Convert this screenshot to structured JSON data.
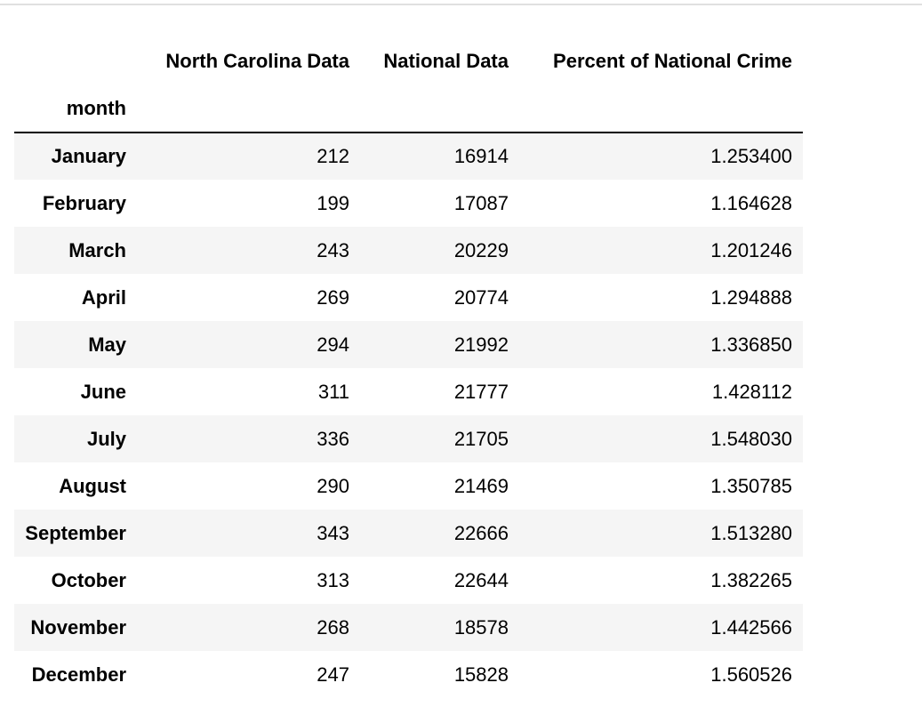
{
  "table": {
    "columns": [
      "North Carolina Data",
      "National Data",
      "Percent of National Crime"
    ],
    "index_name": "month",
    "rows": [
      {
        "month": "January",
        "nc": "212",
        "national": "16914",
        "percent": "1.253400"
      },
      {
        "month": "February",
        "nc": "199",
        "national": "17087",
        "percent": "1.164628"
      },
      {
        "month": "March",
        "nc": "243",
        "national": "20229",
        "percent": "1.201246"
      },
      {
        "month": "April",
        "nc": "269",
        "national": "20774",
        "percent": "1.294888"
      },
      {
        "month": "May",
        "nc": "294",
        "national": "21992",
        "percent": "1.336850"
      },
      {
        "month": "June",
        "nc": "311",
        "national": "21777",
        "percent": "1.428112"
      },
      {
        "month": "July",
        "nc": "336",
        "national": "21705",
        "percent": "1.548030"
      },
      {
        "month": "August",
        "nc": "290",
        "national": "21469",
        "percent": "1.350785"
      },
      {
        "month": "September",
        "nc": "343",
        "national": "22666",
        "percent": "1.513280"
      },
      {
        "month": "October",
        "nc": "313",
        "national": "22644",
        "percent": "1.382265"
      },
      {
        "month": "November",
        "nc": "268",
        "national": "18578",
        "percent": "1.442566"
      },
      {
        "month": "December",
        "nc": "247",
        "national": "15828",
        "percent": "1.560526"
      }
    ]
  }
}
